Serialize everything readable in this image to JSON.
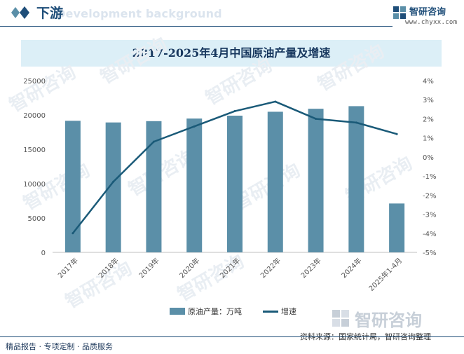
{
  "header": {
    "section_title": "下游",
    "bg_text": "Development background",
    "brand_name": "智研咨询",
    "brand_url": "www.chyxx.com"
  },
  "chart_data": {
    "type": "bar+line",
    "title": "2017-2025年4月中国原油产量及增速",
    "categories": [
      "2017年",
      "2018年",
      "2019年",
      "2020年",
      "2021年",
      "2022年",
      "2023年",
      "2024年",
      "2025年1-4月"
    ],
    "series": [
      {
        "name": "原油产量：万吨",
        "type": "bar",
        "axis": "left",
        "values": [
          19151,
          18911,
          19101,
          19477,
          19898,
          20467,
          20902,
          21282,
          7111
        ]
      },
      {
        "name": "增速",
        "type": "line",
        "axis": "right",
        "unit": "%",
        "values": [
          -4.0,
          -1.3,
          0.8,
          1.6,
          2.4,
          2.9,
          2.0,
          1.8,
          1.2
        ]
      }
    ],
    "y_left": {
      "min": 0,
      "max": 25000,
      "ticks": [
        "0",
        "5000",
        "10000",
        "15000",
        "20000",
        "25000"
      ]
    },
    "y_right": {
      "min": -5,
      "max": 4,
      "ticks": [
        "-5%",
        "-4%",
        "-3%",
        "-2%",
        "-1%",
        "0%",
        "1%",
        "2%",
        "3%",
        "4%"
      ]
    },
    "grid": false,
    "legend": "bottom-center"
  },
  "legend": {
    "bar_label": "原油产量：万吨",
    "line_label": "增速"
  },
  "source": "资料来源：国家统计局，智研咨询整理",
  "footer": "精品报告 · 专项定制 · 品质服务",
  "watermark": "智研咨询",
  "colors": {
    "bar": "#5b8fa8",
    "line": "#1a5a78",
    "title_band": "#dceff7",
    "brand": "#1f4e79"
  }
}
